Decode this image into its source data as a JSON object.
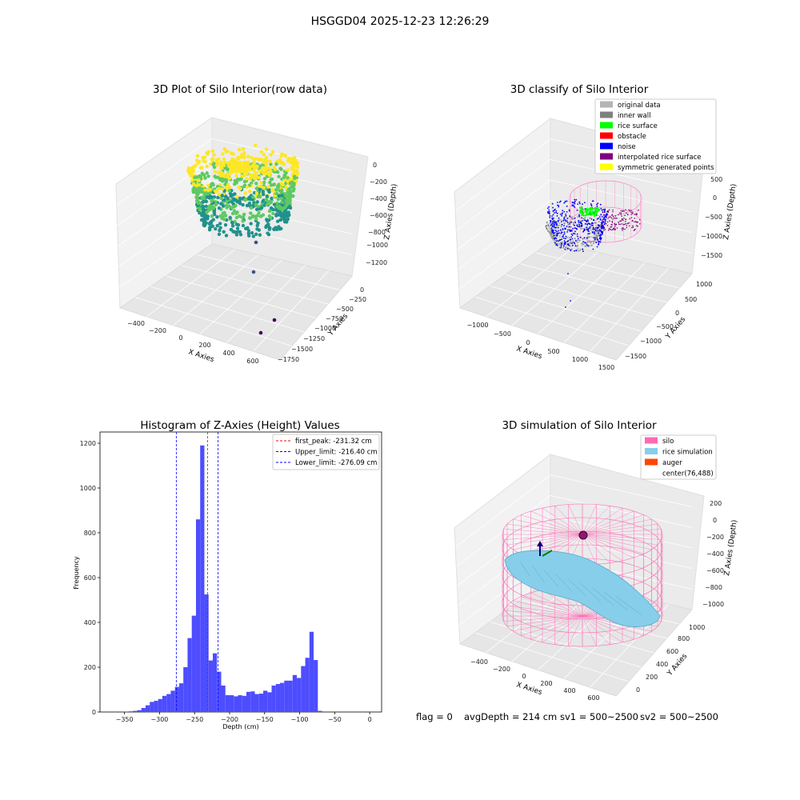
{
  "suptitle": "HSGGD04 2025-12-23 12:26:29",
  "footer": {
    "flag": "flag = 0",
    "avg_depth": "avgDepth = 214 cm",
    "sv1": "sv1 = 500~2500",
    "sv2": "sv2 = 500~2500"
  },
  "chart_data": [
    {
      "type": "scatter",
      "title": "3D Plot of Silo Interior(row data)",
      "xlabel": "X Axies",
      "ylabel": "Y Axies",
      "zlabel": "Z Axies (Depth)",
      "x_ticks": [
        "−400",
        "−200",
        "0",
        "200",
        "400",
        "600"
      ],
      "y_ticks": [
        "0",
        "−250",
        "−500",
        "−750",
        "−1000",
        "−1250",
        "−1500",
        "−1750"
      ],
      "z_ticks": [
        "0",
        "−200",
        "−400",
        "−600",
        "−800",
        "−1000",
        "−1200"
      ],
      "colormap": [
        "#440154",
        "#3b528b",
        "#21918c",
        "#5ec962",
        "#fde725"
      ]
    },
    {
      "type": "scatter",
      "title": "3D classify of Silo Interior",
      "xlabel": "X Axies",
      "ylabel": "Y Axies",
      "zlabel": "Z Axies (Depth)",
      "x_ticks": [
        "−1000",
        "−500",
        "0",
        "500",
        "1000",
        "1500"
      ],
      "y_ticks": [
        "1000",
        "500",
        "0",
        "−500",
        "−1000",
        "−1500"
      ],
      "z_ticks": [
        "500",
        "0",
        "−500",
        "−1000",
        "−1500"
      ],
      "legend": [
        {
          "label": "original data",
          "color": "#b4b4b4"
        },
        {
          "label": "inner wall",
          "color": "#808080"
        },
        {
          "label": "rice surface",
          "color": "#00ff00"
        },
        {
          "label": "obstacle",
          "color": "#ff0000"
        },
        {
          "label": "noise",
          "color": "#0000ff"
        },
        {
          "label": "interpolated rice surface",
          "color": "#800080"
        },
        {
          "label": "symmetric generated points",
          "color": "#ffff00"
        }
      ]
    },
    {
      "type": "bar",
      "title": "Histogram of Z-Axies (Height) Values",
      "xlabel": "Depth (cm)",
      "ylabel": "Frequency",
      "bar_color": "#4d4dff",
      "bin_width": 6,
      "x_range": [
        -385,
        17
      ],
      "y_range": [
        0,
        1250
      ],
      "x_ticks": [
        -350,
        -300,
        -250,
        -200,
        -150,
        -100,
        -50,
        0
      ],
      "x_tick_labels": [
        "−350",
        "−300",
        "−250",
        "−200",
        "−150",
        "−100",
        "−50",
        "0"
      ],
      "y_ticks": [
        0,
        200,
        400,
        600,
        800,
        1000,
        1200
      ],
      "bins": [
        {
          "start": -350,
          "value": 2
        },
        {
          "start": -344,
          "value": 3
        },
        {
          "start": -338,
          "value": 5
        },
        {
          "start": -332,
          "value": 8
        },
        {
          "start": -326,
          "value": 18
        },
        {
          "start": -320,
          "value": 30
        },
        {
          "start": -314,
          "value": 45
        },
        {
          "start": -308,
          "value": 50
        },
        {
          "start": -302,
          "value": 58
        },
        {
          "start": -296,
          "value": 72
        },
        {
          "start": -290,
          "value": 80
        },
        {
          "start": -284,
          "value": 95
        },
        {
          "start": -278,
          "value": 112
        },
        {
          "start": -272,
          "value": 128
        },
        {
          "start": -266,
          "value": 200
        },
        {
          "start": -260,
          "value": 330
        },
        {
          "start": -254,
          "value": 430
        },
        {
          "start": -248,
          "value": 860
        },
        {
          "start": -242,
          "value": 1190
        },
        {
          "start": -236,
          "value": 525
        },
        {
          "start": -230,
          "value": 230
        },
        {
          "start": -224,
          "value": 262
        },
        {
          "start": -218,
          "value": 180
        },
        {
          "start": -212,
          "value": 118
        },
        {
          "start": -206,
          "value": 75
        },
        {
          "start": -200,
          "value": 75
        },
        {
          "start": -194,
          "value": 70
        },
        {
          "start": -188,
          "value": 75
        },
        {
          "start": -182,
          "value": 72
        },
        {
          "start": -176,
          "value": 90
        },
        {
          "start": -170,
          "value": 92
        },
        {
          "start": -164,
          "value": 80
        },
        {
          "start": -158,
          "value": 82
        },
        {
          "start": -152,
          "value": 95
        },
        {
          "start": -146,
          "value": 88
        },
        {
          "start": -140,
          "value": 118
        },
        {
          "start": -134,
          "value": 125
        },
        {
          "start": -128,
          "value": 130
        },
        {
          "start": -122,
          "value": 140
        },
        {
          "start": -116,
          "value": 140
        },
        {
          "start": -110,
          "value": 165
        },
        {
          "start": -104,
          "value": 152
        },
        {
          "start": -98,
          "value": 205
        },
        {
          "start": -92,
          "value": 242
        },
        {
          "start": -86,
          "value": 358
        },
        {
          "start": -80,
          "value": 232
        },
        {
          "start": -74,
          "value": 5
        }
      ],
      "vlines": [
        {
          "x": -231.32,
          "color": "#ff0000"
        },
        {
          "x": -216.4,
          "color": "#0000ff"
        },
        {
          "x": -276.09,
          "color": "#0000ff"
        }
      ],
      "legend": [
        {
          "label": "first_peak: -231.32 cm",
          "color": "#ff0000"
        },
        {
          "label": "Upper_limit: -216.40 cm",
          "color": "#0000ff"
        },
        {
          "label": "Lower_limit: -276.09 cm",
          "color": "#0000ff"
        }
      ]
    },
    {
      "type": "area",
      "title": "3D simulation of Silo Interior",
      "xlabel": "X Axies",
      "ylabel": "Y Axies",
      "zlabel": "Z Axies (Depth)",
      "x_ticks": [
        "−400",
        "−200",
        "0",
        "200",
        "400",
        "600"
      ],
      "y_ticks": [
        "0",
        "200",
        "400",
        "600",
        "800",
        "1000"
      ],
      "z_ticks": [
        "200",
        "0",
        "−200",
        "−400",
        "−600",
        "−800",
        "−1000"
      ],
      "legend": [
        {
          "label": "silo",
          "color": "#ff69b4"
        },
        {
          "label": "rice simulation",
          "color": "#87ceeb"
        },
        {
          "label": "auger",
          "color": "#ff4500"
        },
        {
          "label": "center(76,488)",
          "color": "#ffffff"
        }
      ]
    }
  ]
}
